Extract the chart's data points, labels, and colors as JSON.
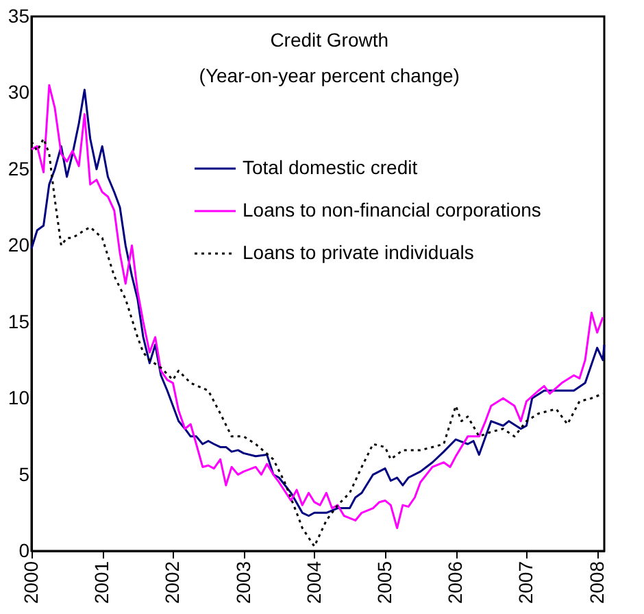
{
  "chart_data": {
    "type": "line",
    "title": "Credit Growth",
    "subtitle": "(Year-on-year percent change)",
    "xlim": [
      2000,
      2008.1
    ],
    "xticks": [
      2000,
      2001,
      2002,
      2003,
      2004,
      2005,
      2006,
      2007,
      2008
    ],
    "ylim": [
      0,
      35
    ],
    "yticks": [
      0,
      5,
      10,
      15,
      20,
      25,
      30,
      35
    ],
    "grid": false,
    "legend": "top right",
    "series": [
      {
        "name": "Total domestic credit",
        "color": "#000080",
        "line_style": "solid",
        "x": [
          2000.0,
          2000.08,
          2000.17,
          2000.25,
          2000.33,
          2000.42,
          2000.5,
          2000.58,
          2000.67,
          2000.75,
          2000.83,
          2000.92,
          2001.0,
          2001.08,
          2001.17,
          2001.25,
          2001.33,
          2001.42,
          2001.5,
          2001.58,
          2001.67,
          2001.75,
          2001.83,
          2001.92,
          2002.0,
          2002.08,
          2002.17,
          2002.25,
          2002.33,
          2002.42,
          2002.5,
          2002.58,
          2002.67,
          2002.75,
          2002.83,
          2002.92,
          2003.0,
          2003.17,
          2003.33,
          2003.42,
          2003.5,
          2003.67,
          2003.83,
          2003.92,
          2004.0,
          2004.17,
          2004.33,
          2004.5,
          2004.58,
          2004.67,
          2004.83,
          2005.0,
          2005.08,
          2005.17,
          2005.25,
          2005.33,
          2005.5,
          2005.67,
          2005.83,
          2006.0,
          2006.17,
          2006.25,
          2006.33,
          2006.5,
          2006.67,
          2006.75,
          2006.92,
          2007.0,
          2007.08,
          2007.25,
          2007.33,
          2007.5,
          2007.67,
          2007.83,
          2008.0,
          2008.08,
          2008.1
        ],
        "values": [
          19.8,
          21,
          21.3,
          24,
          25,
          26.5,
          24.5,
          26,
          28,
          30.2,
          27,
          25,
          26.5,
          24.5,
          23.5,
          22.5,
          20,
          18,
          16.5,
          14,
          12.3,
          13.5,
          11.5,
          10.5,
          9.5,
          8.5,
          8,
          7.5,
          7.5,
          7.0,
          7.2,
          7.0,
          6.8,
          6.8,
          6.5,
          6.6,
          6.4,
          6.2,
          6.3,
          5.0,
          4.8,
          3.8,
          2.5,
          2.3,
          2.5,
          2.5,
          2.8,
          2.8,
          3.5,
          3.8,
          5.0,
          5.4,
          4.6,
          4.8,
          4.3,
          4.8,
          5.2,
          5.8,
          6.5,
          7.3,
          7.0,
          7.2,
          6.3,
          8.5,
          8.2,
          8.5,
          8.0,
          8.2,
          10.0,
          10.5,
          10.5,
          10.5,
          10.5,
          11.0,
          13.3,
          12.5,
          13.5
        ]
      },
      {
        "name": "Loans to non-financial corporations",
        "color": "#ff00ff",
        "line_style": "solid",
        "x": [
          2000.0,
          2000.08,
          2000.17,
          2000.25,
          2000.33,
          2000.42,
          2000.5,
          2000.58,
          2000.67,
          2000.75,
          2000.83,
          2000.92,
          2001.0,
          2001.08,
          2001.17,
          2001.25,
          2001.33,
          2001.42,
          2001.5,
          2001.58,
          2001.67,
          2001.75,
          2001.83,
          2001.92,
          2002.0,
          2002.08,
          2002.17,
          2002.25,
          2002.33,
          2002.42,
          2002.5,
          2002.58,
          2002.67,
          2002.75,
          2002.83,
          2002.92,
          2003.0,
          2003.17,
          2003.25,
          2003.33,
          2003.42,
          2003.5,
          2003.67,
          2003.75,
          2003.83,
          2003.92,
          2004.0,
          2004.08,
          2004.17,
          2004.25,
          2004.33,
          2004.42,
          2004.58,
          2004.67,
          2004.83,
          2004.92,
          2005.0,
          2005.08,
          2005.17,
          2005.25,
          2005.33,
          2005.42,
          2005.5,
          2005.67,
          2005.83,
          2005.92,
          2006.0,
          2006.17,
          2006.33,
          2006.42,
          2006.5,
          2006.67,
          2006.83,
          2006.92,
          2007.0,
          2007.17,
          2007.25,
          2007.33,
          2007.5,
          2007.67,
          2007.75,
          2007.83,
          2007.92,
          2008.0,
          2008.08
        ],
        "values": [
          26.3,
          26.5,
          24.8,
          30.5,
          29,
          26,
          25.5,
          26.2,
          25.2,
          28.6,
          24,
          24.3,
          23.5,
          23.2,
          22.3,
          19.5,
          17.5,
          20,
          17,
          15,
          13,
          14,
          11.8,
          11.2,
          11.0,
          9.2,
          8.0,
          8.3,
          7.0,
          5.5,
          5.6,
          5.4,
          6.0,
          4.3,
          5.5,
          5.0,
          5.2,
          5.5,
          5.0,
          5.7,
          5.0,
          4.5,
          3.3,
          4.0,
          3.0,
          3.8,
          3.2,
          3.0,
          3.8,
          2.8,
          3.0,
          2.3,
          2.0,
          2.5,
          2.8,
          3.2,
          3.3,
          3.0,
          1.5,
          3.0,
          2.9,
          3.5,
          4.5,
          5.5,
          5.8,
          5.5,
          6.2,
          7.5,
          7.5,
          8.5,
          9.5,
          10.0,
          9.5,
          8.5,
          9.8,
          10.5,
          10.8,
          10.3,
          11.0,
          11.5,
          11.3,
          12.5,
          15.6,
          14.3,
          15.3
        ]
      },
      {
        "name": "Loans to private individuals",
        "color": "#000000",
        "line_style": "dotted",
        "x": [
          2000.0,
          2000.08,
          2000.17,
          2000.25,
          2000.33,
          2000.42,
          2000.5,
          2000.58,
          2000.75,
          2000.83,
          2001.0,
          2001.17,
          2001.33,
          2001.5,
          2001.58,
          2001.67,
          2001.83,
          2002.0,
          2002.08,
          2002.25,
          2002.5,
          2002.67,
          2002.83,
          2003.0,
          2003.17,
          2003.42,
          2003.58,
          2003.75,
          2003.83,
          2004.0,
          2004.17,
          2004.33,
          2004.5,
          2004.67,
          2004.83,
          2005.0,
          2005.08,
          2005.25,
          2005.5,
          2005.67,
          2005.83,
          2006.0,
          2006.08,
          2006.17,
          2006.33,
          2006.5,
          2006.67,
          2006.83,
          2007.0,
          2007.17,
          2007.42,
          2007.58,
          2007.75,
          2007.92,
          2008.08
        ],
        "values": [
          26.8,
          26.2,
          27,
          26,
          23,
          20,
          20.5,
          20.5,
          21,
          21.2,
          20.5,
          18,
          16.5,
          14,
          13,
          12.5,
          12,
          11.2,
          11.8,
          11.0,
          10.5,
          9.0,
          7.5,
          7.5,
          7.0,
          6.0,
          4.5,
          2.5,
          1.5,
          0.3,
          2.0,
          3.0,
          3.8,
          5.5,
          7.0,
          6.8,
          6.0,
          6.6,
          6.6,
          6.8,
          7.0,
          9.5,
          8.5,
          8.8,
          7.5,
          7.8,
          8.0,
          7.5,
          8.5,
          9.0,
          9.3,
          8.3,
          9.8,
          10.0,
          10.3
        ]
      }
    ]
  }
}
